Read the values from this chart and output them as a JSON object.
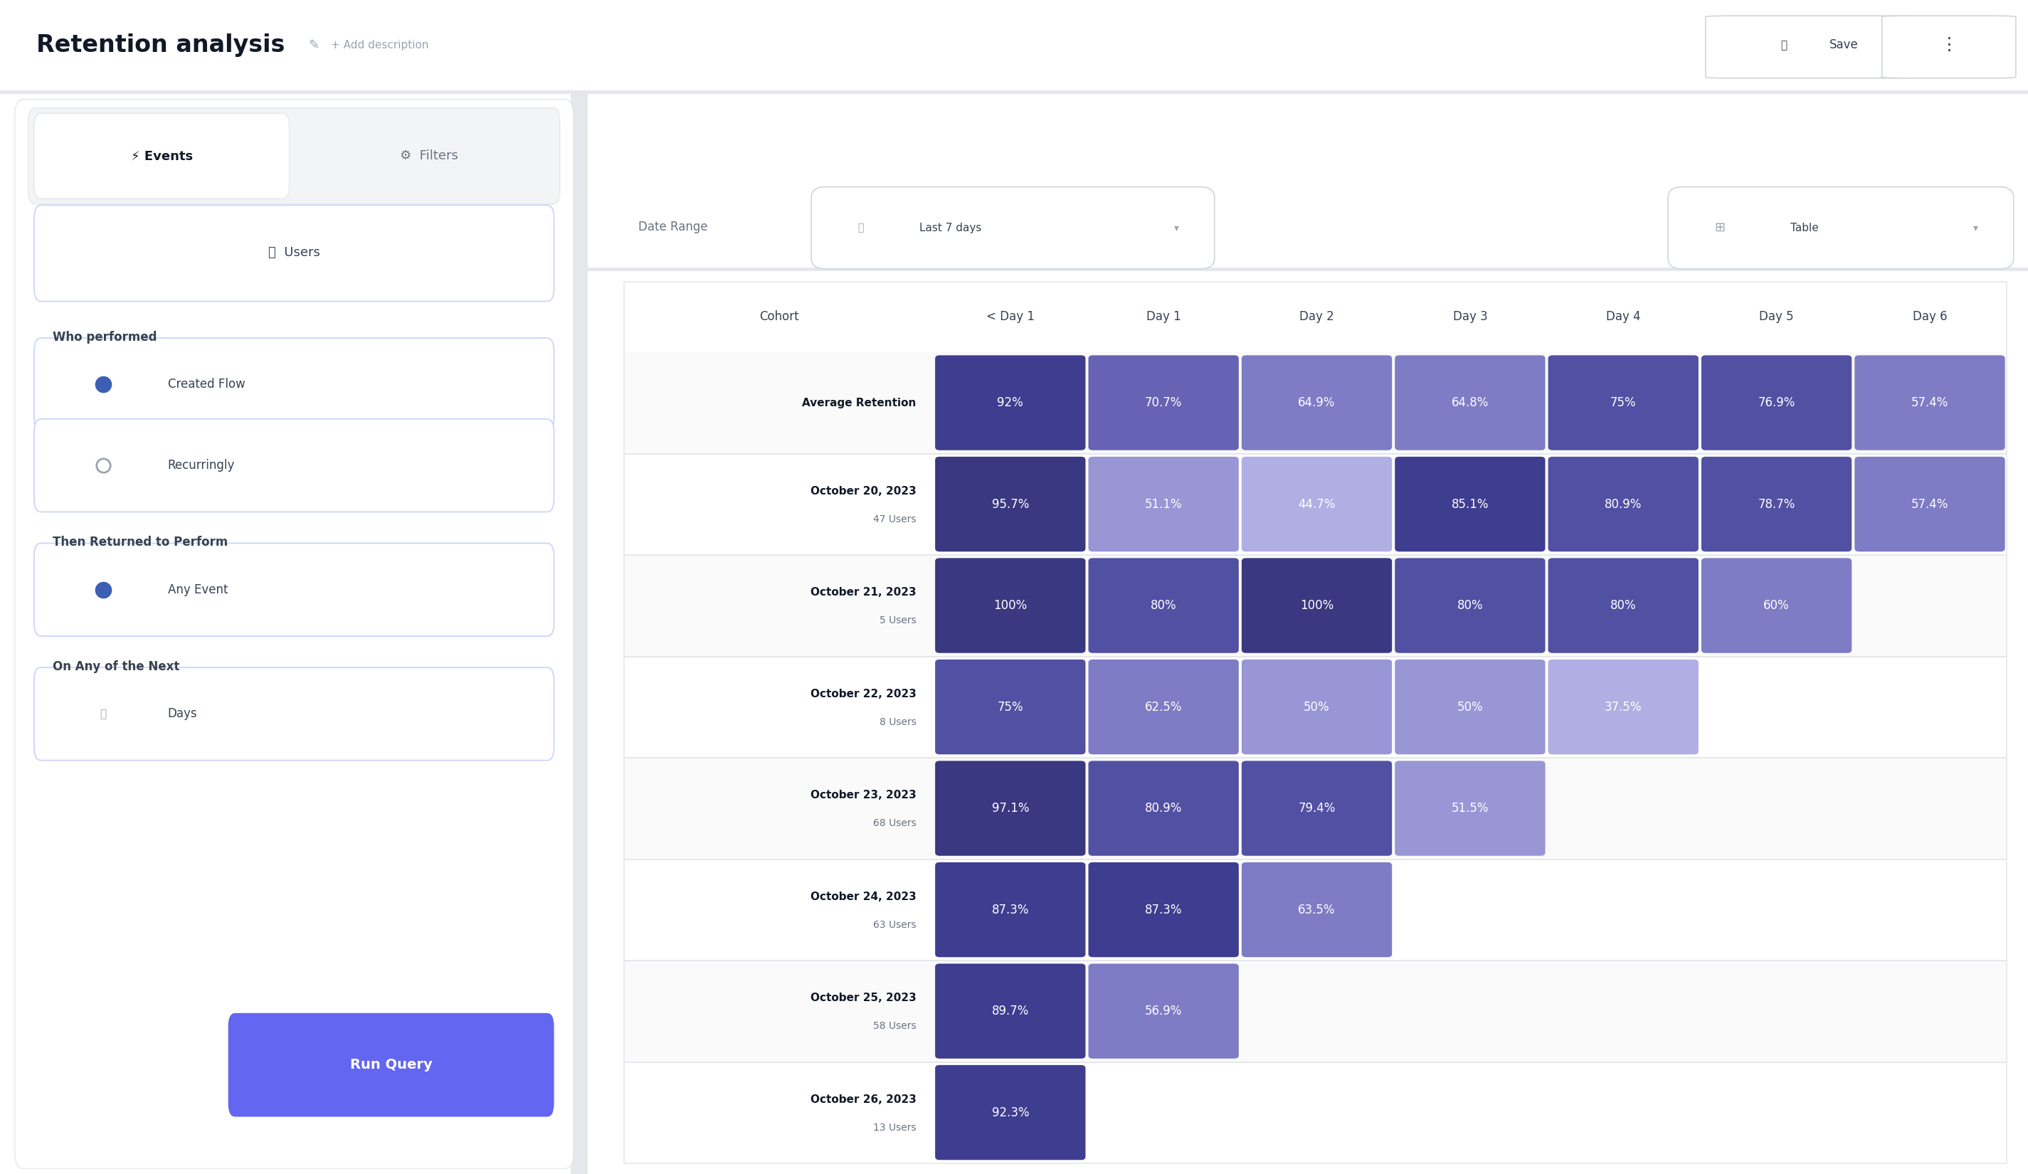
{
  "title": "Retention analysis",
  "add_description": "+ Add description",
  "save_label": "Save",
  "tab_events": "Events",
  "tab_filters": "Filters",
  "users_label": "Users",
  "who_performed": "Who performed",
  "created_flow": "Created Flow",
  "recurringly": "Recurringly",
  "then_returned": "Then Returned to Perform",
  "any_event": "Any Event",
  "on_any": "On Any of the Next",
  "days": "Days",
  "run_query": "Run Query",
  "date_range_label": "Date Range",
  "date_range_value": "Last 7 days",
  "table_label": "Table",
  "cohort_header": "Cohort",
  "day_headers": [
    "< Day 1",
    "Day 1",
    "Day 2",
    "Day 3",
    "Day 4",
    "Day 5",
    "Day 6"
  ],
  "rows": [
    {
      "label": "Average Retention",
      "sublabel": "",
      "values": [
        92,
        70.7,
        64.9,
        64.8,
        75,
        76.9,
        57.4
      ],
      "display": [
        "92%",
        "70.7%",
        "64.9%",
        "64.8%",
        "75%",
        "76.9%",
        "57.4%"
      ]
    },
    {
      "label": "October 20, 2023",
      "sublabel": "47 Users",
      "values": [
        95.7,
        51.1,
        44.7,
        85.1,
        80.9,
        78.7,
        57.4
      ],
      "display": [
        "95.7%",
        "51.1%",
        "44.7%",
        "85.1%",
        "80.9%",
        "78.7%",
        "57.4%"
      ]
    },
    {
      "label": "October 21, 2023",
      "sublabel": "5 Users",
      "values": [
        100,
        80,
        100,
        80,
        80,
        60,
        null
      ],
      "display": [
        "100%",
        "80%",
        "100%",
        "80%",
        "80%",
        "60%",
        ""
      ]
    },
    {
      "label": "October 22, 2023",
      "sublabel": "8 Users",
      "values": [
        75,
        62.5,
        50,
        50,
        37.5,
        null,
        null
      ],
      "display": [
        "75%",
        "62.5%",
        "50%",
        "50%",
        "37.5%",
        "",
        ""
      ]
    },
    {
      "label": "October 23, 2023",
      "sublabel": "68 Users",
      "values": [
        97.1,
        80.9,
        79.4,
        51.5,
        null,
        null,
        null
      ],
      "display": [
        "97.1%",
        "80.9%",
        "79.4%",
        "51.5%",
        "",
        "",
        ""
      ]
    },
    {
      "label": "October 24, 2023",
      "sublabel": "63 Users",
      "values": [
        87.3,
        87.3,
        63.5,
        null,
        null,
        null,
        null
      ],
      "display": [
        "87.3%",
        "87.3%",
        "63.5%",
        "",
        "",
        "",
        ""
      ]
    },
    {
      "label": "October 25, 2023",
      "sublabel": "58 Users",
      "values": [
        89.7,
        56.9,
        null,
        null,
        null,
        null,
        null
      ],
      "display": [
        "89.7%",
        "56.9%",
        "",
        "",
        "",
        "",
        ""
      ]
    },
    {
      "label": "October 26, 2023",
      "sublabel": "13 Users",
      "values": [
        92.3,
        null,
        null,
        null,
        null,
        null,
        null
      ],
      "display": [
        "92.3%",
        "",
        "",
        "",
        "",
        "",
        ""
      ]
    }
  ],
  "bg_white": "#ffffff",
  "bg_sidebar": "#f3f4f6",
  "bg_tab_active": "#ffffff",
  "bg_tab_inactive": "#f3f4f6",
  "border_light": "#e5e7eb",
  "border_input": "#c7d2fe",
  "text_dark": "#111827",
  "text_gray": "#6b7280",
  "text_label": "#374151",
  "dot_blue": "#3b5fb5",
  "btn_purple": "#6366f1",
  "btn_purple_text": "#ffffff"
}
